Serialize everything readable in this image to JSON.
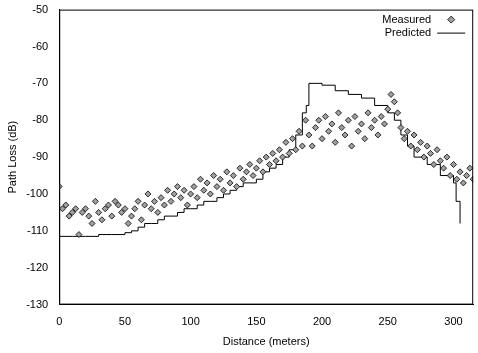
{
  "chart_data": {
    "type": "scatter",
    "x_label": "Distance (meters)",
    "y_label": "Path Loss (dB)",
    "xlim": [
      0,
      315
    ],
    "xticks": [
      0,
      50,
      100,
      150,
      200,
      250,
      300
    ],
    "ylim": [
      -130,
      -50
    ],
    "yticks": [
      -130,
      -120,
      -110,
      -100,
      -90,
      -80,
      -70,
      -60,
      -50
    ],
    "grid": false,
    "legend": "upper right",
    "series": [
      {
        "name": "Measured",
        "type": "scatter",
        "marker": "diamond",
        "color": "#a0a0a0",
        "x": [
          0,
          2.5,
          5,
          7.5,
          10,
          12.5,
          15,
          17.5,
          20,
          22.5,
          25,
          27.5,
          30,
          32.5,
          35,
          37.5,
          40,
          42.5,
          45,
          47.5,
          50,
          52.5,
          55,
          57.5,
          60,
          62.5,
          65,
          67.5,
          70,
          72.5,
          75,
          77.5,
          80,
          82.5,
          85,
          87.5,
          90,
          92.5,
          95,
          97.5,
          100,
          102.5,
          105,
          107.5,
          110,
          112.5,
          115,
          117.5,
          120,
          122.5,
          125,
          127.5,
          130,
          132.5,
          135,
          137.5,
          140,
          142.5,
          145,
          147.5,
          150,
          152.5,
          155,
          157.5,
          160,
          162.5,
          165,
          167.5,
          170,
          172.5,
          175,
          177.5,
          180,
          182.5,
          185,
          187.5,
          190,
          192.5,
          195,
          197.5,
          200,
          202.5,
          205,
          207.5,
          210,
          212.5,
          215,
          217.5,
          220,
          222.5,
          225,
          227.5,
          230,
          232.5,
          235,
          237.5,
          240,
          242.5,
          245,
          247.5,
          250,
          252.5,
          255,
          257.5,
          260,
          262.5,
          265,
          267.5,
          270,
          272.5,
          275,
          277.5,
          280,
          282.5,
          285,
          287.5,
          290,
          292.5,
          295,
          297.5,
          300,
          302.5,
          305,
          307.5,
          310,
          312.5,
          315
        ],
        "values": [
          -98,
          -104,
          -103,
          -106,
          -105,
          -104,
          -111,
          -105,
          -104,
          -106,
          -108,
          -102,
          -105,
          -107,
          -104,
          -103,
          -106,
          -102,
          -103,
          -105,
          -104,
          -108,
          -106,
          -104,
          -102,
          -107,
          -103,
          -100,
          -104,
          -102,
          -105,
          -101,
          -103,
          -99,
          -102,
          -100,
          -98,
          -101,
          -99,
          -103,
          -100,
          -98,
          -101,
          -96,
          -99,
          -97,
          -100,
          -95,
          -98,
          -96,
          -99,
          -94,
          -97,
          -95,
          -98,
          -93,
          -96,
          -94,
          -92,
          -95,
          -93,
          -91,
          -94,
          -90,
          -92,
          -89,
          -91,
          -88,
          -90,
          -86,
          -89,
          -85,
          -88,
          -83,
          -87,
          -80,
          -84,
          -87,
          -82,
          -80,
          -85,
          -79,
          -83,
          -81,
          -86,
          -78,
          -82,
          -84,
          -80,
          -87,
          -79,
          -83,
          -81,
          -85,
          -78,
          -82,
          -80,
          -84,
          -79,
          -81,
          -77,
          -73,
          -75,
          -78,
          -82,
          -85,
          -83,
          -87,
          -84,
          -88,
          -86,
          -90,
          -87,
          -89,
          -92,
          -88,
          -91,
          -93,
          -90,
          -95,
          -92,
          -96,
          -94,
          -97,
          -95,
          -93,
          -96
        ]
      },
      {
        "name": "Predicted",
        "type": "line",
        "line_style": "steps",
        "color": "#000000",
        "x": [
          0,
          10,
          20,
          30,
          40,
          50,
          55,
          60,
          65,
          70,
          75,
          80,
          85,
          90,
          95,
          100,
          105,
          110,
          115,
          120,
          125,
          130,
          135,
          140,
          145,
          150,
          155,
          160,
          165,
          170,
          175,
          180,
          185,
          188,
          190,
          200,
          210,
          220,
          230,
          240,
          250,
          255,
          260,
          265,
          270,
          280,
          290,
          300,
          302,
          305
        ],
        "values": [
          -111.5,
          -111.5,
          -111.5,
          -111,
          -111,
          -110.5,
          -110,
          -109,
          -108,
          -108,
          -107,
          -106,
          -106,
          -105,
          -104,
          -104,
          -103,
          -102,
          -102,
          -101,
          -100,
          -99,
          -98,
          -97,
          -97,
          -96,
          -94,
          -93,
          -92,
          -90,
          -88,
          -84,
          -78,
          -76,
          -70,
          -70.5,
          -72,
          -73,
          -74,
          -76,
          -78,
          -80,
          -84,
          -87,
          -90,
          -92,
          -95,
          -97,
          -102,
          -108
        ]
      }
    ]
  }
}
